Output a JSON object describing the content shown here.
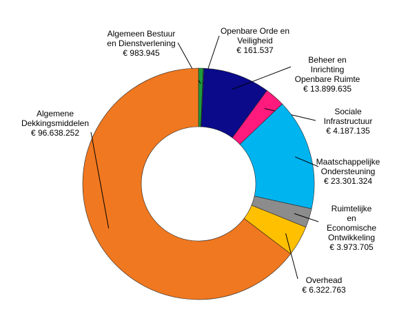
{
  "chart_data": {
    "type": "donut",
    "categories": [
      "Algemeen Bestuur\nen Dienstverlening",
      "Openbare Orde en\nVeiligheid",
      "Beheer en Inrichting\nOpenbare Ruimte",
      "Sociale\nInfrastructuur",
      "Maatschappelijke\nOndersteuning",
      "Ruimtelijke en\nEconomische\nOntwikkeling",
      "Overhead",
      "Algemene\nDekkingsmiddelen"
    ],
    "values": [
      983945,
      161537,
      13899635,
      4187135,
      23301324,
      3973705,
      6322763,
      96638252
    ],
    "value_labels": [
      "€ 983.945",
      "€ 161.537",
      "€ 13.899.635",
      "€ 4.187.135",
      "€ 23.301.324",
      "€ 3.973.705",
      "€ 6.322.763",
      "€ 96.638.252"
    ],
    "colors": [
      "#1e9b3c",
      "#1c6f74",
      "#0a0a8a",
      "#ff1b7d",
      "#00b4f0",
      "#8c8c8c",
      "#ffc000",
      "#f07820"
    ]
  }
}
